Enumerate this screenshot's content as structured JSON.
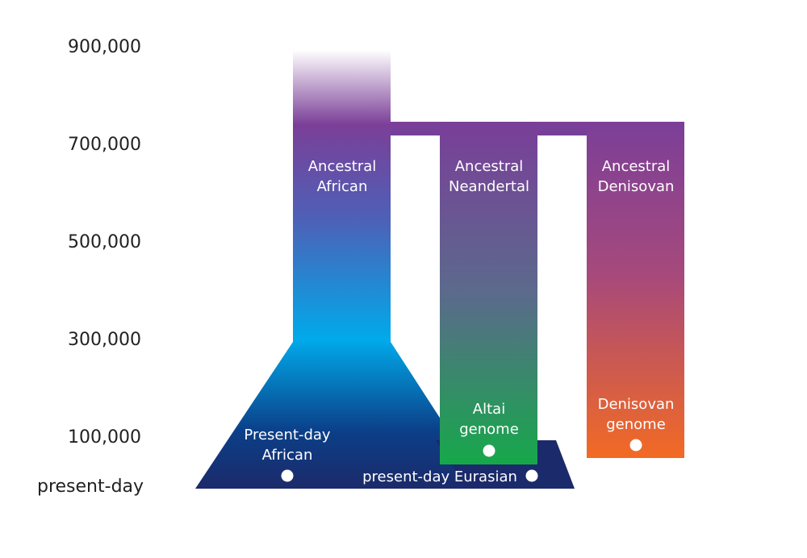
{
  "time_axis": {
    "ticks": [
      "900,000",
      "700,000",
      "500,000",
      "300,000",
      "100,000",
      "present-day"
    ]
  },
  "lineages": {
    "african": {
      "line1": "Ancestral",
      "line2": "African"
    },
    "neandertal": {
      "line1": "Ancestral",
      "line2": "Neandertal"
    },
    "denisovan": {
      "line1": "Ancestral",
      "line2": "Denisovan"
    }
  },
  "samples": {
    "present_african": {
      "line1": "Present-day",
      "line2": "African"
    },
    "altai": {
      "line1": "Altai",
      "line2": "genome"
    },
    "denisovan_genome": {
      "line1": "Denisovan",
      "line2": "genome"
    },
    "present_eurasian": {
      "label": "present-day Eurasian"
    }
  },
  "colors": {
    "purple": "#7b3f98",
    "blue": "#00a6e8",
    "navy": "#1c2b6b",
    "green": "#18a84a",
    "orange": "#f26a24"
  }
}
